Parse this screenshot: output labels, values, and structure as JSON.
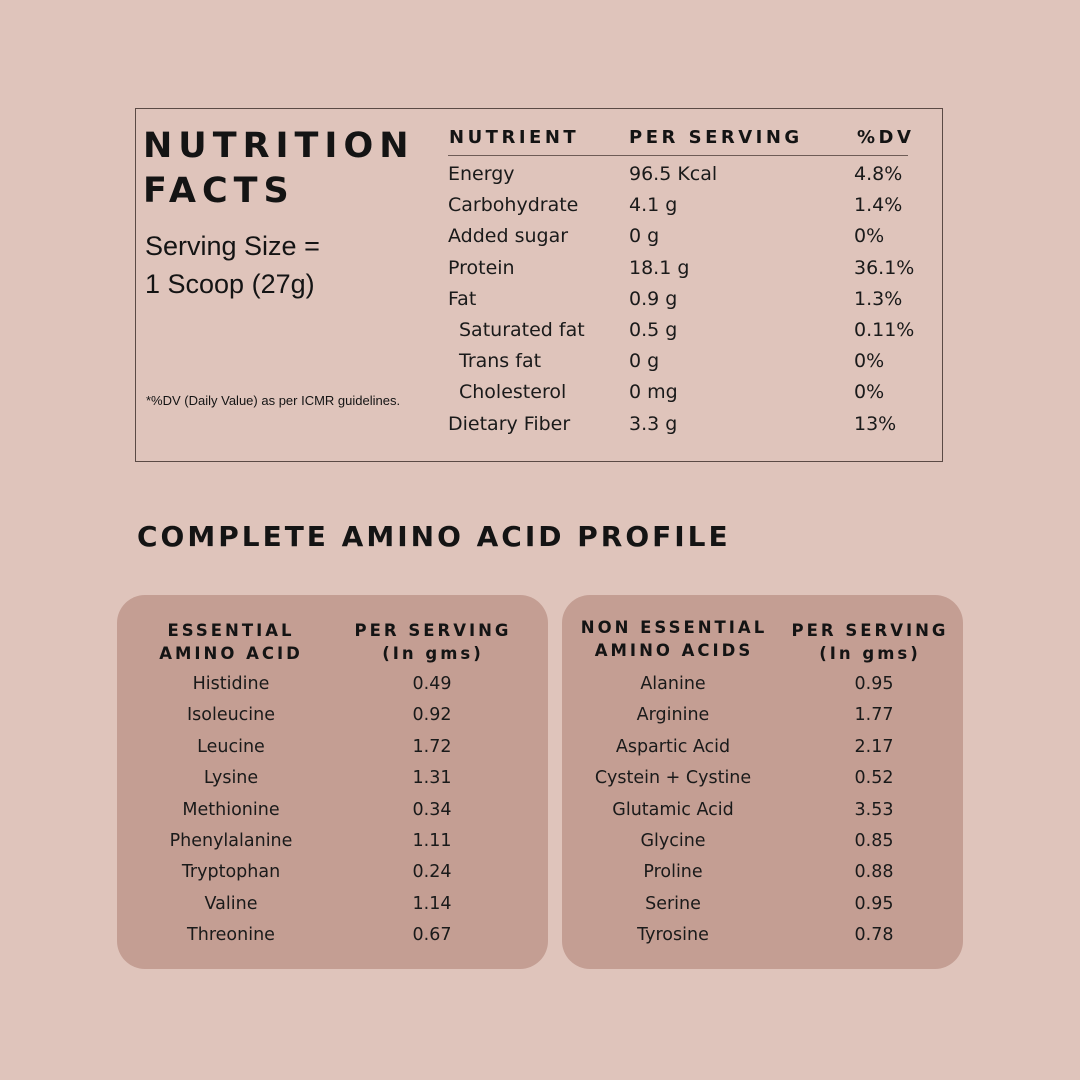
{
  "nutrition_facts": {
    "title_line1": "NUTRITION",
    "title_line2": "FACTS",
    "serving_line1": "Serving Size =",
    "serving_line2": "1 Scoop (27g)",
    "dv_note": "*%DV (Daily Value) as per ICMR guidelines.",
    "headers": {
      "nutrient": "NUTRIENT",
      "per_serving": "PER SERVING",
      "dv": "%DV"
    },
    "rows": [
      {
        "name": "Energy",
        "value": "96.5 Kcal",
        "dv": "4.8%",
        "indent": false
      },
      {
        "name": "Carbohydrate",
        "value": "4.1 g",
        "dv": "1.4%",
        "indent": false
      },
      {
        "name": "Added sugar",
        "value": "0 g",
        "dv": "0%",
        "indent": false
      },
      {
        "name": "Protein",
        "value": "18.1 g",
        "dv": "36.1%",
        "indent": false
      },
      {
        "name": "Fat",
        "value": "0.9 g",
        "dv": "1.3%",
        "indent": false
      },
      {
        "name": "Saturated fat",
        "value": "0.5 g",
        "dv": "0.11%",
        "indent": true
      },
      {
        "name": "Trans fat",
        "value": "0 g",
        "dv": "0%",
        "indent": true
      },
      {
        "name": "Cholesterol",
        "value": "0 mg",
        "dv": "0%",
        "indent": true
      },
      {
        "name": "Dietary Fiber",
        "value": "3.3 g",
        "dv": "13%",
        "indent": false
      }
    ]
  },
  "amino": {
    "title": "COMPLETE AMINO ACID PROFILE",
    "essential": {
      "header_name_line1": "ESSENTIAL",
      "header_name_line2": "AMINO ACID",
      "header_value_line1": "PER SERVING",
      "header_value_line2": "(In gms)",
      "rows": [
        {
          "name": "Histidine",
          "value": "0.49"
        },
        {
          "name": "Isoleucine",
          "value": "0.92"
        },
        {
          "name": "Leucine",
          "value": "1.72"
        },
        {
          "name": "Lysine",
          "value": "1.31"
        },
        {
          "name": "Methionine",
          "value": "0.34"
        },
        {
          "name": "Phenylalanine",
          "value": "1.11"
        },
        {
          "name": "Tryptophan",
          "value": "0.24"
        },
        {
          "name": "Valine",
          "value": "1.14"
        },
        {
          "name": "Threonine",
          "value": "0.67"
        }
      ]
    },
    "non_essential": {
      "header_name_line1": "NON ESSENTIAL",
      "header_name_line2": "AMINO ACIDS",
      "header_value_line1": "PER SERVING",
      "header_value_line2": "(In gms)",
      "rows": [
        {
          "name": "Alanine",
          "value": "0.95"
        },
        {
          "name": "Arginine",
          "value": "1.77"
        },
        {
          "name": "Aspartic Acid",
          "value": "2.17"
        },
        {
          "name": "Cystein + Cystine",
          "value": "0.52"
        },
        {
          "name": "Glutamic Acid",
          "value": "3.53"
        },
        {
          "name": "Glycine",
          "value": "0.85"
        },
        {
          "name": "Proline",
          "value": "0.88"
        },
        {
          "name": "Serine",
          "value": "0.95"
        },
        {
          "name": "Tyrosine",
          "value": "0.78"
        }
      ]
    }
  }
}
